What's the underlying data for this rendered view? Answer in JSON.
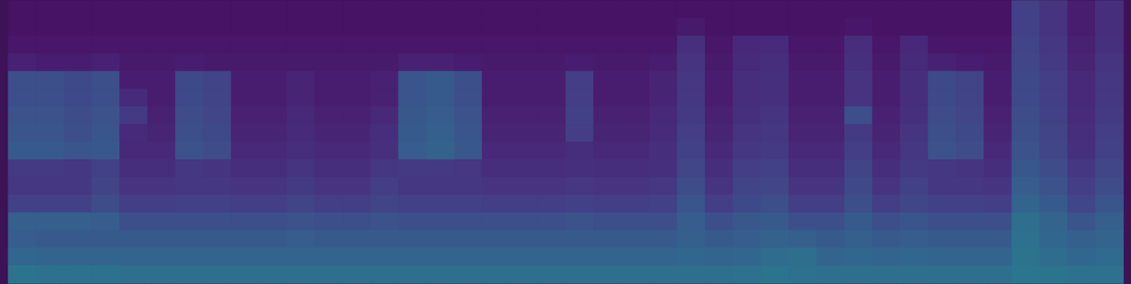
{
  "chart_data": {
    "type": "heatmap",
    "color": "viridis",
    "tick_labels": false,
    "value_range": [
      0,
      100
    ],
    "cells": [
      [
        5,
        5,
        5,
        5,
        5,
        5,
        5,
        5,
        5,
        5,
        5,
        5,
        5,
        5,
        5,
        5,
        5,
        5,
        5,
        5,
        5,
        5,
        5,
        5,
        5,
        5,
        5,
        5,
        5,
        5,
        5,
        5,
        5,
        5,
        5,
        5,
        19,
        15,
        8,
        13
      ],
      [
        5,
        5,
        5,
        5,
        5,
        5,
        5,
        5,
        5,
        5,
        5,
        5,
        5,
        5,
        5,
        5,
        5,
        5,
        5,
        5,
        5,
        5,
        5,
        5,
        7,
        5,
        5,
        5,
        5,
        5,
        6,
        5,
        5,
        5,
        5,
        5,
        19,
        15,
        8,
        13
      ],
      [
        6,
        6,
        6,
        6,
        6,
        6,
        6,
        6,
        6,
        6,
        6,
        6,
        6,
        6,
        6,
        6,
        6,
        6,
        6,
        6,
        6,
        6,
        6,
        6,
        14,
        6,
        11,
        12,
        6,
        6,
        13,
        6,
        11,
        6,
        6,
        6,
        20,
        16,
        9,
        14
      ],
      [
        9,
        8,
        8,
        9,
        7,
        7,
        8,
        7,
        7,
        7,
        7,
        7,
        7,
        7,
        9,
        9,
        8,
        7,
        7,
        7,
        8,
        7,
        7,
        8,
        15,
        7,
        12,
        13,
        7,
        7,
        14,
        7,
        12,
        9,
        8,
        7,
        21,
        17,
        10,
        15
      ],
      [
        24,
        24,
        22,
        24,
        8,
        8,
        22,
        20,
        8,
        8,
        10,
        8,
        8,
        9,
        26,
        28,
        24,
        8,
        8,
        8,
        18,
        8,
        8,
        10,
        16,
        8,
        13,
        14,
        8,
        8,
        15,
        8,
        13,
        22,
        20,
        8,
        22,
        18,
        11,
        16
      ],
      [
        24,
        24,
        22,
        24,
        12,
        8,
        22,
        20,
        8,
        8,
        10,
        8,
        8,
        9,
        26,
        28,
        24,
        8,
        8,
        8,
        18,
        8,
        8,
        10,
        16,
        8,
        13,
        14,
        8,
        8,
        15,
        8,
        13,
        22,
        20,
        8,
        22,
        18,
        11,
        16
      ],
      [
        25,
        25,
        23,
        25,
        17,
        9,
        23,
        21,
        9,
        9,
        11,
        9,
        9,
        11,
        27,
        29,
        25,
        9,
        9,
        9,
        19,
        9,
        9,
        11,
        17,
        9,
        14,
        15,
        9,
        9,
        24,
        9,
        14,
        23,
        21,
        9,
        23,
        19,
        12,
        17
      ],
      [
        26,
        26,
        24,
        26,
        12,
        10,
        24,
        22,
        10,
        10,
        12,
        10,
        10,
        13,
        28,
        30,
        26,
        10,
        10,
        10,
        18,
        10,
        10,
        12,
        18,
        10,
        15,
        16,
        10,
        10,
        17,
        10,
        15,
        24,
        22,
        10,
        24,
        20,
        13,
        18
      ],
      [
        28,
        28,
        26,
        27,
        11,
        11,
        25,
        23,
        11,
        11,
        13,
        11,
        11,
        14,
        29,
        31,
        27,
        11,
        11,
        11,
        13,
        11,
        11,
        13,
        19,
        11,
        16,
        17,
        11,
        11,
        18,
        11,
        16,
        25,
        23,
        11,
        25,
        21,
        14,
        19
      ],
      [
        17,
        17,
        16,
        19,
        13,
        13,
        16,
        15,
        13,
        13,
        15,
        13,
        13,
        16,
        17,
        17,
        16,
        13,
        13,
        13,
        14,
        13,
        13,
        14,
        21,
        13,
        18,
        19,
        13,
        13,
        20,
        13,
        17,
        16,
        15,
        13,
        27,
        23,
        16,
        21
      ],
      [
        16,
        16,
        16,
        20,
        15,
        15,
        16,
        16,
        15,
        15,
        17,
        15,
        15,
        18,
        16,
        16,
        16,
        15,
        15,
        15,
        16,
        15,
        15,
        16,
        23,
        15,
        20,
        21,
        15,
        15,
        22,
        15,
        19,
        16,
        16,
        15,
        29,
        25,
        18,
        23
      ],
      [
        19,
        19,
        19,
        23,
        18,
        18,
        19,
        19,
        18,
        18,
        20,
        18,
        18,
        20,
        19,
        19,
        19,
        18,
        18,
        18,
        19,
        18,
        18,
        19,
        26,
        18,
        22,
        24,
        18,
        18,
        24,
        18,
        21,
        19,
        19,
        18,
        32,
        28,
        21,
        26
      ],
      [
        30,
        30,
        30,
        29,
        24,
        24,
        24,
        24,
        24,
        24,
        25,
        24,
        24,
        25,
        24,
        24,
        24,
        24,
        24,
        24,
        25,
        24,
        24,
        24,
        29,
        24,
        27,
        28,
        24,
        24,
        28,
        24,
        26,
        24,
        24,
        24,
        36,
        32,
        26,
        30
      ],
      [
        29,
        28,
        28,
        28,
        28,
        28,
        28,
        28,
        28,
        28,
        29,
        28,
        28,
        28,
        28,
        28,
        28,
        28,
        28,
        28,
        28,
        28,
        28,
        28,
        30,
        28,
        29,
        31,
        30,
        28,
        30,
        28,
        29,
        28,
        28,
        28,
        37,
        33,
        30,
        32
      ],
      [
        33,
        32,
        32,
        32,
        32,
        32,
        32,
        32,
        32,
        32,
        32,
        32,
        32,
        32,
        32,
        32,
        32,
        32,
        32,
        32,
        32,
        32,
        32,
        32,
        33,
        32,
        33,
        35,
        36,
        32,
        33,
        32,
        33,
        32,
        32,
        32,
        38,
        35,
        33,
        34
      ],
      [
        38,
        37,
        37,
        37,
        36,
        36,
        36,
        36,
        36,
        36,
        36,
        36,
        36,
        36,
        36,
        36,
        36,
        36,
        36,
        36,
        36,
        36,
        36,
        36,
        36,
        36,
        37,
        38,
        37,
        36,
        36,
        36,
        36,
        36,
        36,
        36,
        39,
        38,
        37,
        37
      ]
    ]
  }
}
